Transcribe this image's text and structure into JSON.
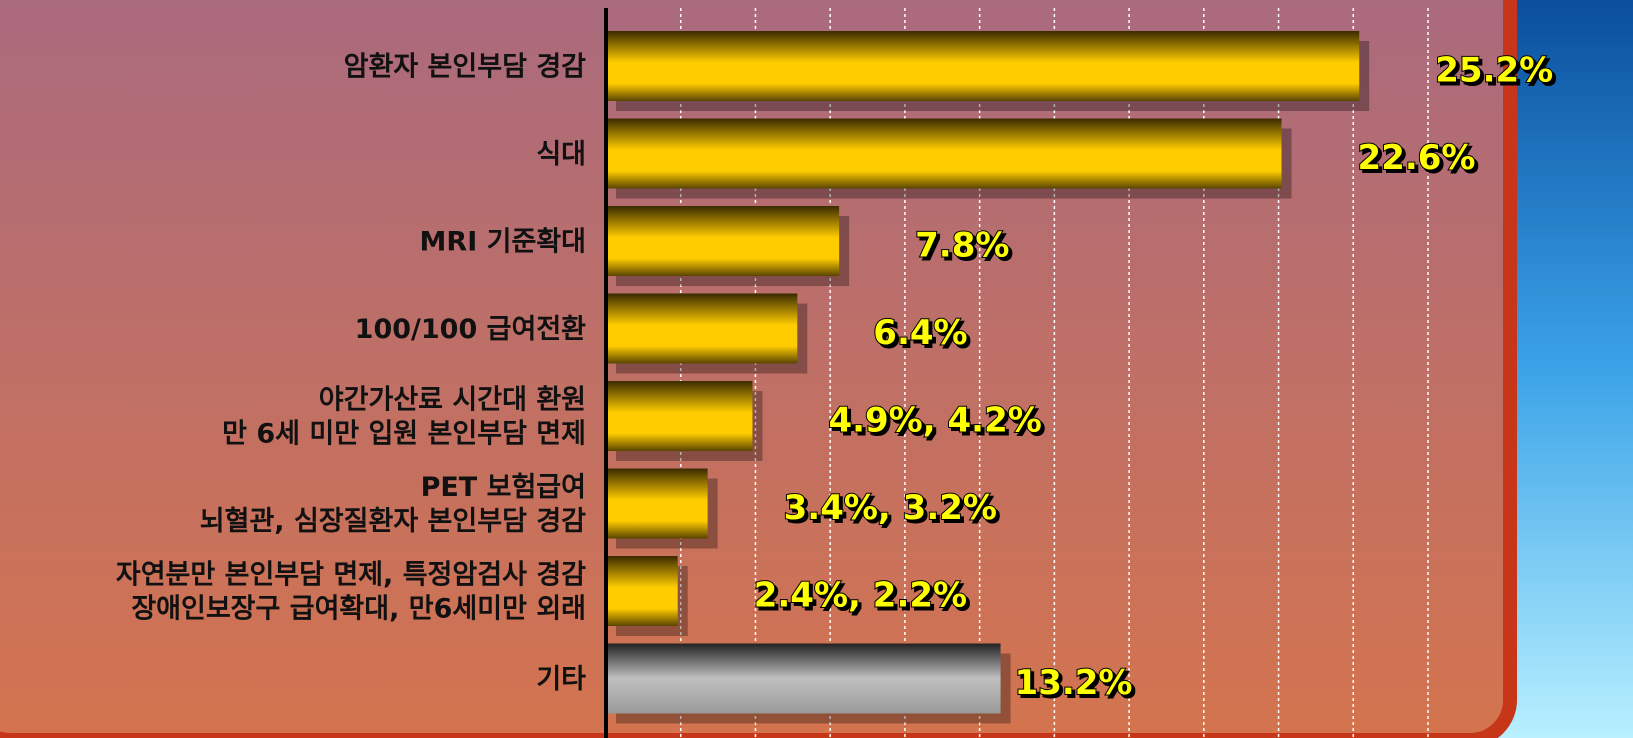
{
  "chart_data": {
    "type": "hbar",
    "categories": [
      [
        "암환자 본인부담 경감"
      ],
      [
        "식대"
      ],
      [
        "MRI 기준확대"
      ],
      [
        "100/100 급여전환"
      ],
      [
        "야간가산료 시간대 환원",
        "만 6세 미만 입원 본인부담 면제"
      ],
      [
        "PET 보험급여",
        "뇌혈관, 심장질환자 본인부담 경감"
      ],
      [
        "자연분만 본인부담 면제, 특정암검사 경감",
        "장애인보장구 급여확대, 만6세미만 외래"
      ],
      [
        "기타"
      ]
    ],
    "values": [
      25.2,
      22.6,
      7.8,
      6.4,
      4.9,
      3.4,
      2.4,
      13.2
    ],
    "value_labels": [
      "25.2%",
      "22.6%",
      "7.8%",
      "6.4%",
      "4.9%, 4.2%",
      "3.4%, 3.2%",
      "2.4%, 2.2%",
      "13.2%"
    ],
    "colors": [
      "#ffcc00",
      "#ffcc00",
      "#ffcc00",
      "#ffcc00",
      "#ffcc00",
      "#ffcc00",
      "#ffcc00",
      "#c0c0c0"
    ],
    "xlim": [
      0,
      27.5
    ],
    "xticks": [
      0,
      2.5,
      5,
      7.5,
      10,
      12.5,
      15,
      17.5,
      20,
      22.5,
      25,
      27.5
    ],
    "grid": true
  }
}
